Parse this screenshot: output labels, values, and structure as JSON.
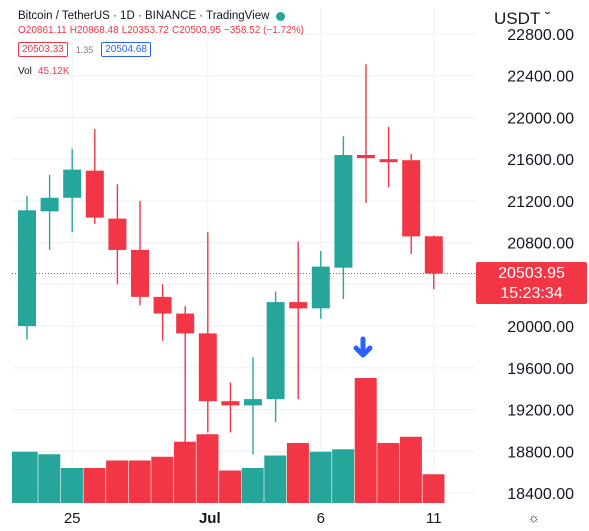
{
  "header": {
    "title": "Bitcoin / TetherUS · 1D · BINANCE · TradingView",
    "ohlc": {
      "open": "O20861.11",
      "high": "H20868.48",
      "low": "L20353.72",
      "close": "C20503.95",
      "change": "−358.52 (−1.72%)"
    },
    "bid": "20503.33",
    "spread": "1.35",
    "ask": "20504.68",
    "volume_label": "Vol",
    "volume_value": "45.12K"
  },
  "currency_label": "USDT ˇ",
  "price_tag": {
    "price": "20503.95",
    "countdown": "15:23:34"
  },
  "settings_icon": "☼",
  "colors": {
    "up": "#26a69a",
    "down": "#f23645",
    "ask": "#2962ff",
    "grid": "#eef0f3"
  },
  "chart_data": {
    "type": "candlestick",
    "symbol": "Bitcoin / TetherUS",
    "interval": "1D",
    "exchange": "BINANCE",
    "y_ticks": [
      18400,
      18800,
      19200,
      19600,
      20000,
      20400,
      20800,
      21200,
      21600,
      22000,
      22400,
      22800
    ],
    "y_tick_labels": [
      "18400.00",
      "18800.00",
      "19200.00",
      "19600.00",
      "20000.00",
      "20400.00",
      "20800.00",
      "21200.00",
      "21600.00",
      "22000.00",
      "22400.00",
      "22800.00"
    ],
    "ylim": [
      18300,
      22850
    ],
    "x_labels": [
      {
        "index": 2,
        "label": "25"
      },
      {
        "index": 8,
        "label": "Jul"
      },
      {
        "index": 13,
        "label": "6"
      },
      {
        "index": 18,
        "label": "11"
      }
    ],
    "last_price": 20503.95,
    "candles": [
      {
        "o": 20000,
        "h": 21250,
        "l": 19870,
        "c": 21110
      },
      {
        "o": 21100,
        "h": 21450,
        "l": 20730,
        "c": 21230
      },
      {
        "o": 21230,
        "h": 21700,
        "l": 20900,
        "c": 21500
      },
      {
        "o": 21490,
        "h": 21890,
        "l": 20980,
        "c": 21040
      },
      {
        "o": 21030,
        "h": 21360,
        "l": 20400,
        "c": 20730
      },
      {
        "o": 20730,
        "h": 21200,
        "l": 20200,
        "c": 20280
      },
      {
        "o": 20280,
        "h": 20400,
        "l": 19860,
        "c": 20120
      },
      {
        "o": 20120,
        "h": 20190,
        "l": 18650,
        "c": 19930
      },
      {
        "o": 19930,
        "h": 20900,
        "l": 18980,
        "c": 19280
      },
      {
        "o": 19280,
        "h": 19460,
        "l": 18980,
        "c": 19240
      },
      {
        "o": 19240,
        "h": 19700,
        "l": 18770,
        "c": 19300
      },
      {
        "o": 19300,
        "h": 20330,
        "l": 19080,
        "c": 20230
      },
      {
        "o": 20230,
        "h": 20810,
        "l": 19300,
        "c": 20170
      },
      {
        "o": 20170,
        "h": 20720,
        "l": 20070,
        "c": 20570
      },
      {
        "o": 20560,
        "h": 21820,
        "l": 20260,
        "c": 21640
      },
      {
        "o": 21640,
        "h": 22510,
        "l": 21180,
        "c": 21610
      },
      {
        "o": 21600,
        "h": 21910,
        "l": 21330,
        "c": 21590
      },
      {
        "o": 21590,
        "h": 21650,
        "l": 20690,
        "c": 20860
      },
      {
        "o": 20861.11,
        "h": 20868.48,
        "l": 20353.72,
        "c": 20503.95
      }
    ],
    "volume": [
      {
        "value": 0.41,
        "up": true
      },
      {
        "value": 0.39,
        "up": true
      },
      {
        "value": 0.28,
        "up": true
      },
      {
        "value": 0.28,
        "up": false
      },
      {
        "value": 0.34,
        "up": false
      },
      {
        "value": 0.34,
        "up": false
      },
      {
        "value": 0.37,
        "up": false
      },
      {
        "value": 0.49,
        "up": false
      },
      {
        "value": 0.55,
        "up": false
      },
      {
        "value": 0.26,
        "up": false
      },
      {
        "value": 0.28,
        "up": true
      },
      {
        "value": 0.38,
        "up": true
      },
      {
        "value": 0.48,
        "up": false
      },
      {
        "value": 0.41,
        "up": true
      },
      {
        "value": 0.43,
        "up": true
      },
      {
        "value": 1.0,
        "up": false
      },
      {
        "value": 0.48,
        "up": false
      },
      {
        "value": 0.53,
        "up": false
      },
      {
        "value": 0.23,
        "up": false
      }
    ],
    "annotation": "down-arrow above volume"
  }
}
